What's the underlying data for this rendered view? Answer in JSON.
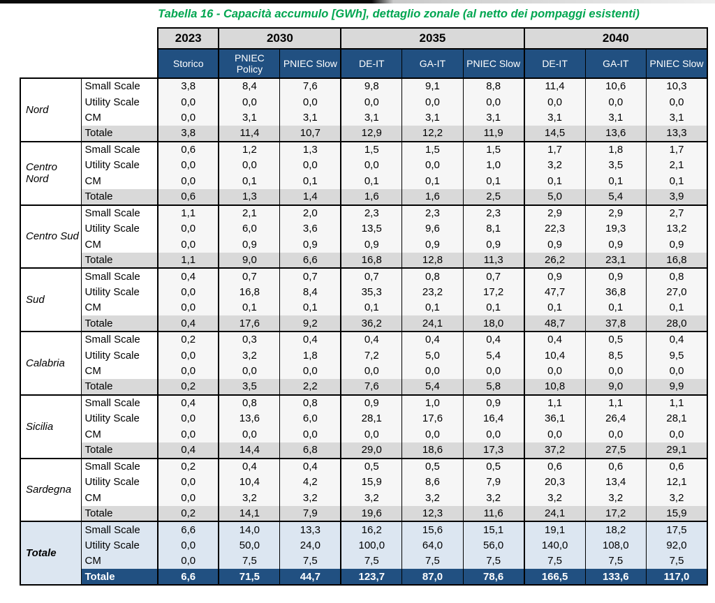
{
  "page": {
    "title": "Tabella 16 - Capacità accumulo [GWh], dettaglio zonale (al netto dei pompaggi esistenti)"
  },
  "colors": {
    "title_green": "#00A650",
    "header_blue": "#215081",
    "header_gray": "#D9D9D9",
    "subtotal_gray": "#D9D9D9",
    "total_light_blue": "#DCE6F1"
  },
  "table": {
    "unit": "GWh",
    "year_groups": [
      {
        "label": "2023",
        "columns": [
          "Storico"
        ]
      },
      {
        "label": "2030",
        "columns": [
          "PNIEC Policy",
          "PNIEC Slow"
        ]
      },
      {
        "label": "2035",
        "columns": [
          "DE-IT",
          "GA-IT",
          "PNIEC Slow"
        ]
      },
      {
        "label": "2040",
        "columns": [
          "DE-IT",
          "GA-IT",
          "PNIEC Slow"
        ]
      }
    ],
    "zones": [
      {
        "name": "Nord",
        "variant": "normal",
        "rows": [
          {
            "label": "Small Scale",
            "kind": "data",
            "values": [
              "3,8",
              "8,4",
              "7,6",
              "9,8",
              "9,1",
              "8,8",
              "11,4",
              "10,6",
              "10,3"
            ]
          },
          {
            "label": "Utility Scale",
            "kind": "data",
            "values": [
              "0,0",
              "0,0",
              "0,0",
              "0,0",
              "0,0",
              "0,0",
              "0,0",
              "0,0",
              "0,0"
            ]
          },
          {
            "label": "CM",
            "kind": "data",
            "values": [
              "0,0",
              "3,1",
              "3,1",
              "3,1",
              "3,1",
              "3,1",
              "3,1",
              "3,1",
              "3,1"
            ]
          },
          {
            "label": "Totale",
            "kind": "subtotal",
            "values": [
              "3,8",
              "11,4",
              "10,7",
              "12,9",
              "12,2",
              "11,9",
              "14,5",
              "13,6",
              "13,3"
            ]
          }
        ]
      },
      {
        "name": "Centro Nord",
        "variant": "normal",
        "rows": [
          {
            "label": "Small Scale",
            "kind": "data",
            "values": [
              "0,6",
              "1,2",
              "1,3",
              "1,5",
              "1,5",
              "1,5",
              "1,7",
              "1,8",
              "1,7"
            ]
          },
          {
            "label": "Utility Scale",
            "kind": "data",
            "values": [
              "0,0",
              "0,0",
              "0,0",
              "0,0",
              "0,0",
              "1,0",
              "3,2",
              "3,5",
              "2,1"
            ]
          },
          {
            "label": "CM",
            "kind": "data",
            "values": [
              "0,0",
              "0,1",
              "0,1",
              "0,1",
              "0,1",
              "0,1",
              "0,1",
              "0,1",
              "0,1"
            ]
          },
          {
            "label": "Totale",
            "kind": "subtotal",
            "values": [
              "0,6",
              "1,3",
              "1,4",
              "1,6",
              "1,6",
              "2,5",
              "5,0",
              "5,4",
              "3,9"
            ]
          }
        ]
      },
      {
        "name": "Centro Sud",
        "variant": "normal",
        "rows": [
          {
            "label": "Small Scale",
            "kind": "data",
            "values": [
              "1,1",
              "2,1",
              "2,0",
              "2,3",
              "2,3",
              "2,3",
              "2,9",
              "2,9",
              "2,7"
            ]
          },
          {
            "label": "Utility Scale",
            "kind": "data",
            "values": [
              "0,0",
              "6,0",
              "3,6",
              "13,5",
              "9,6",
              "8,1",
              "22,3",
              "19,3",
              "13,2"
            ]
          },
          {
            "label": "CM",
            "kind": "data",
            "values": [
              "0,0",
              "0,9",
              "0,9",
              "0,9",
              "0,9",
              "0,9",
              "0,9",
              "0,9",
              "0,9"
            ]
          },
          {
            "label": "Totale",
            "kind": "subtotal",
            "values": [
              "1,1",
              "9,0",
              "6,6",
              "16,8",
              "12,8",
              "11,3",
              "26,2",
              "23,1",
              "16,8"
            ]
          }
        ]
      },
      {
        "name": "Sud",
        "variant": "normal",
        "rows": [
          {
            "label": "Small Scale",
            "kind": "data",
            "values": [
              "0,4",
              "0,7",
              "0,7",
              "0,7",
              "0,8",
              "0,7",
              "0,9",
              "0,9",
              "0,8"
            ]
          },
          {
            "label": "Utility Scale",
            "kind": "data",
            "values": [
              "0,0",
              "16,8",
              "8,4",
              "35,3",
              "23,2",
              "17,2",
              "47,7",
              "36,8",
              "27,0"
            ]
          },
          {
            "label": "CM",
            "kind": "data",
            "values": [
              "0,0",
              "0,1",
              "0,1",
              "0,1",
              "0,1",
              "0,1",
              "0,1",
              "0,1",
              "0,1"
            ]
          },
          {
            "label": "Totale",
            "kind": "subtotal",
            "values": [
              "0,4",
              "17,6",
              "9,2",
              "36,2",
              "24,1",
              "18,0",
              "48,7",
              "37,8",
              "28,0"
            ]
          }
        ]
      },
      {
        "name": "Calabria",
        "variant": "normal",
        "rows": [
          {
            "label": "Small Scale",
            "kind": "data",
            "values": [
              "0,2",
              "0,3",
              "0,4",
              "0,4",
              "0,4",
              "0,4",
              "0,4",
              "0,5",
              "0,4"
            ]
          },
          {
            "label": "Utility Scale",
            "kind": "data",
            "values": [
              "0,0",
              "3,2",
              "1,8",
              "7,2",
              "5,0",
              "5,4",
              "10,4",
              "8,5",
              "9,5"
            ]
          },
          {
            "label": "CM",
            "kind": "data",
            "values": [
              "0,0",
              "0,0",
              "0,0",
              "0,0",
              "0,0",
              "0,0",
              "0,0",
              "0,0",
              "0,0"
            ]
          },
          {
            "label": "Totale",
            "kind": "subtotal",
            "values": [
              "0,2",
              "3,5",
              "2,2",
              "7,6",
              "5,4",
              "5,8",
              "10,8",
              "9,0",
              "9,9"
            ]
          }
        ]
      },
      {
        "name": "Sicilia",
        "variant": "normal",
        "rows": [
          {
            "label": "Small Scale",
            "kind": "data",
            "values": [
              "0,4",
              "0,8",
              "0,8",
              "0,9",
              "1,0",
              "0,9",
              "1,1",
              "1,1",
              "1,1"
            ]
          },
          {
            "label": "Utility Scale",
            "kind": "data",
            "values": [
              "0,0",
              "13,6",
              "6,0",
              "28,1",
              "17,6",
              "16,4",
              "36,1",
              "26,4",
              "28,1"
            ]
          },
          {
            "label": "CM",
            "kind": "data",
            "values": [
              "0,0",
              "0,0",
              "0,0",
              "0,0",
              "0,0",
              "0,0",
              "0,0",
              "0,0",
              "0,0"
            ]
          },
          {
            "label": "Totale",
            "kind": "subtotal",
            "values": [
              "0,4",
              "14,4",
              "6,8",
              "29,0",
              "18,6",
              "17,3",
              "37,2",
              "27,5",
              "29,1"
            ]
          }
        ]
      },
      {
        "name": "Sardegna",
        "variant": "normal",
        "rows": [
          {
            "label": "Small Scale",
            "kind": "data",
            "values": [
              "0,2",
              "0,4",
              "0,4",
              "0,5",
              "0,5",
              "0,5",
              "0,6",
              "0,6",
              "0,6"
            ]
          },
          {
            "label": "Utility Scale",
            "kind": "data",
            "values": [
              "0,0",
              "10,4",
              "4,2",
              "15,9",
              "8,6",
              "7,9",
              "20,3",
              "13,4",
              "12,1"
            ]
          },
          {
            "label": "CM",
            "kind": "data",
            "values": [
              "0,0",
              "3,2",
              "3,2",
              "3,2",
              "3,2",
              "3,2",
              "3,2",
              "3,2",
              "3,2"
            ]
          },
          {
            "label": "Totale",
            "kind": "subtotal",
            "values": [
              "0,2",
              "14,1",
              "7,9",
              "19,6",
              "12,3",
              "11,6",
              "24,1",
              "17,2",
              "15,9"
            ]
          }
        ]
      },
      {
        "name": "Totale",
        "variant": "total",
        "rows": [
          {
            "label": "Small Scale",
            "kind": "data",
            "values": [
              "6,6",
              "14,0",
              "13,3",
              "16,2",
              "15,6",
              "15,1",
              "19,1",
              "18,2",
              "17,5"
            ]
          },
          {
            "label": "Utility Scale",
            "kind": "data",
            "values": [
              "0,0",
              "50,0",
              "24,0",
              "100,0",
              "64,0",
              "56,0",
              "140,0",
              "108,0",
              "92,0"
            ]
          },
          {
            "label": "CM",
            "kind": "data",
            "values": [
              "0,0",
              "7,5",
              "7,5",
              "7,5",
              "7,5",
              "7,5",
              "7,5",
              "7,5",
              "7,5"
            ]
          },
          {
            "label": "Totale",
            "kind": "grandtotal",
            "values": [
              "6,6",
              "71,5",
              "44,7",
              "123,7",
              "87,0",
              "78,6",
              "166,5",
              "133,6",
              "117,0"
            ]
          }
        ]
      }
    ]
  }
}
